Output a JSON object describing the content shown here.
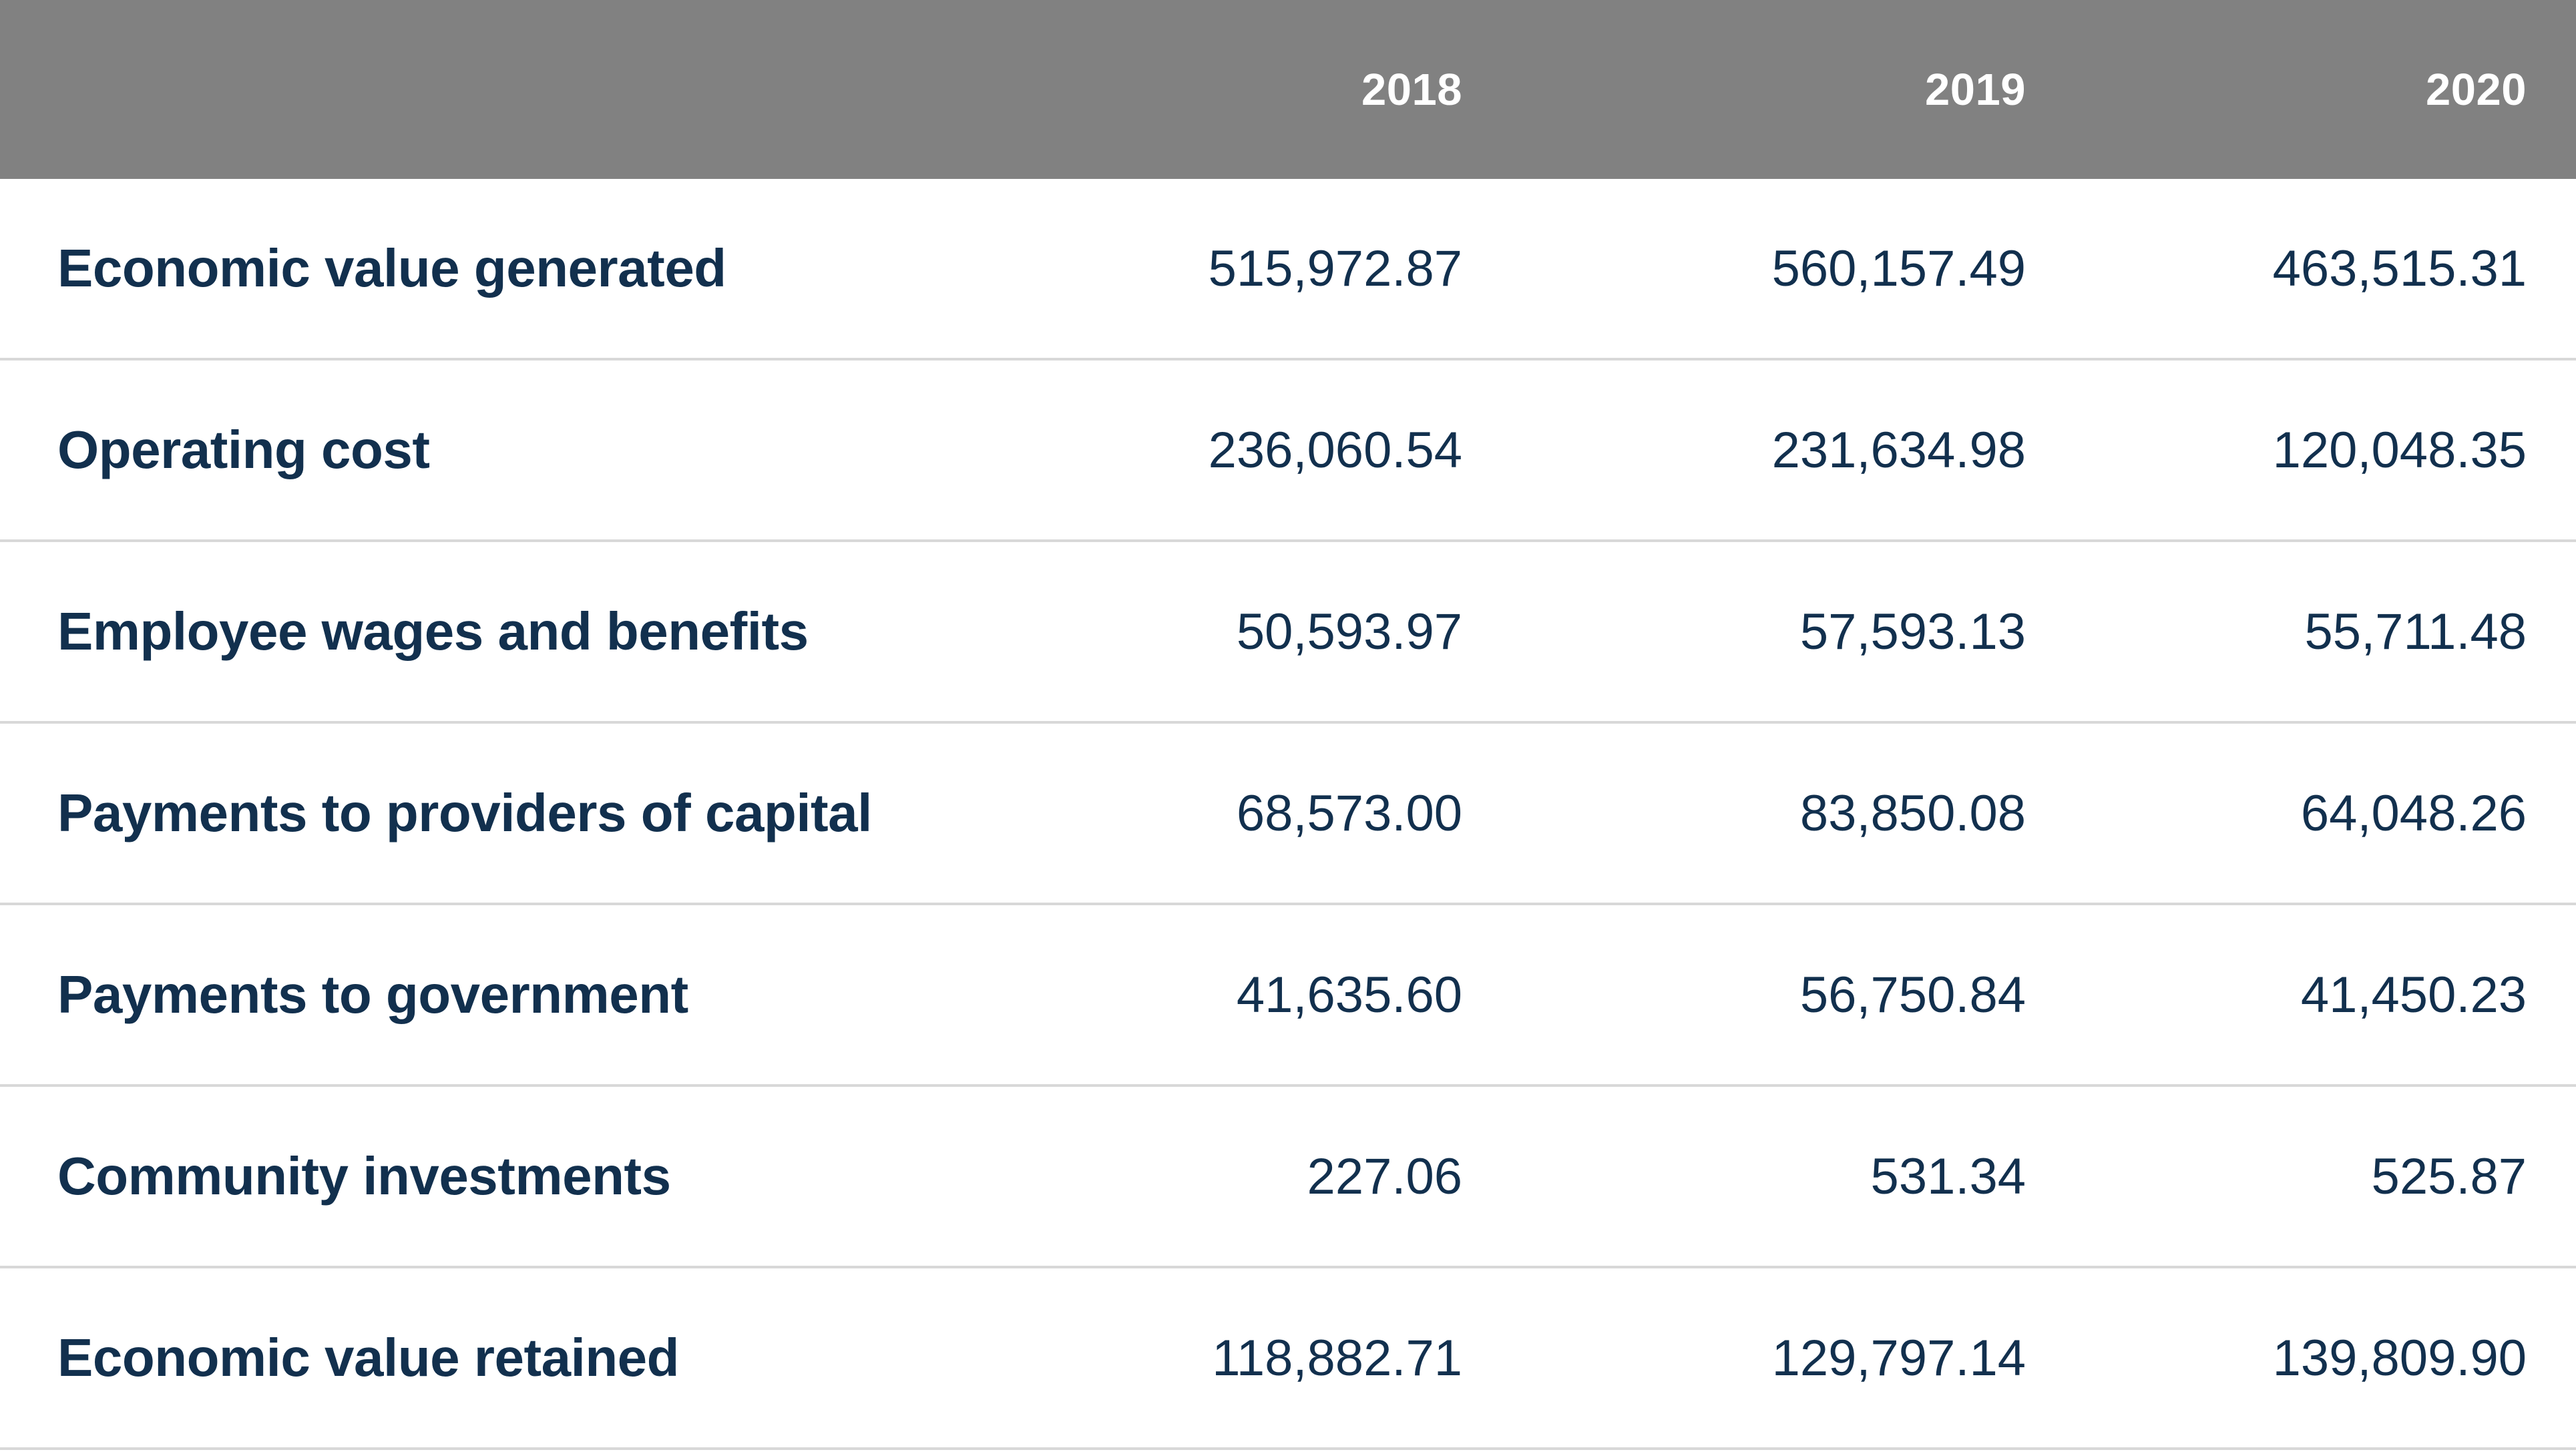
{
  "table": {
    "columns": [
      "2018",
      "2019",
      "2020"
    ],
    "rows": [
      {
        "label": "Economic value generated",
        "values": [
          "515,972.87",
          "560,157.49",
          "463,515.31"
        ]
      },
      {
        "label": "Operating cost",
        "values": [
          "236,060.54",
          "231,634.98",
          "120,048.35"
        ]
      },
      {
        "label": "Employee wages and benefits",
        "values": [
          "50,593.97",
          "57,593.13",
          "55,711.48"
        ]
      },
      {
        "label": "Payments to providers of capital",
        "values": [
          "68,573.00",
          "83,850.08",
          "64,048.26"
        ]
      },
      {
        "label": "Payments to government",
        "values": [
          "41,635.60",
          "56,750.84",
          "41,450.23"
        ]
      },
      {
        "label": "Community investments",
        "values": [
          "227.06",
          "531.34",
          "525.87"
        ]
      },
      {
        "label": "Economic value retained",
        "values": [
          "118,882.71",
          "129,797.14",
          "139,809.90"
        ]
      }
    ],
    "colors": {
      "header_bg": "#818181",
      "header_text": "#ffffff",
      "text_navy": "#12304e",
      "row_bg": "#ffffff",
      "divider": "#d8d8d8"
    }
  },
  "chart_data": {
    "type": "table",
    "title": "",
    "categories": [
      "2018",
      "2019",
      "2020"
    ],
    "series": [
      {
        "name": "Economic value generated",
        "values": [
          515972.87,
          560157.49,
          463515.31
        ]
      },
      {
        "name": "Operating cost",
        "values": [
          236060.54,
          231634.98,
          120048.35
        ]
      },
      {
        "name": "Employee wages and benefits",
        "values": [
          50593.97,
          57593.13,
          55711.48
        ]
      },
      {
        "name": "Payments to providers of capital",
        "values": [
          68573.0,
          83850.08,
          64048.26
        ]
      },
      {
        "name": "Payments to government",
        "values": [
          41635.6,
          56750.84,
          41450.23
        ]
      },
      {
        "name": "Community investments",
        "values": [
          227.06,
          531.34,
          525.87
        ]
      },
      {
        "name": "Economic value retained",
        "values": [
          118882.71,
          129797.14,
          139809.9
        ]
      }
    ]
  }
}
